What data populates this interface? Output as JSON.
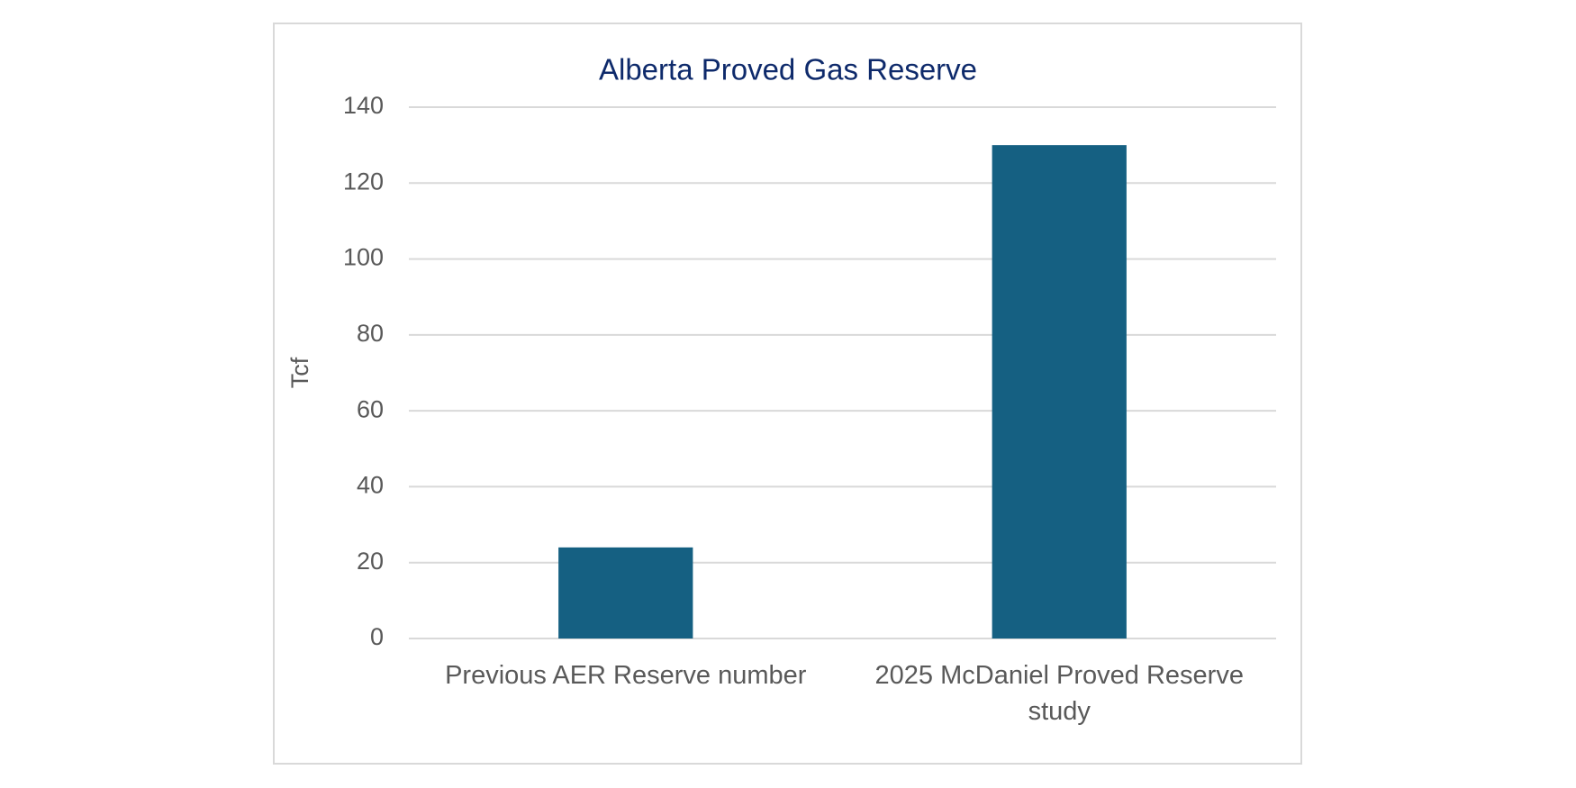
{
  "chart_data": {
    "type": "bar",
    "title": "Alberta Proved Gas Reserve",
    "y_label": "Tcf",
    "categories": [
      "Previous AER Reserve number",
      "2025 McDaniel Proved Reserve study"
    ],
    "values": [
      24,
      130
    ],
    "color": "#156082",
    "ylim": [
      0,
      140
    ],
    "yticks": [
      0,
      20,
      40,
      60,
      80,
      100,
      120,
      140
    ],
    "grid": true
  }
}
